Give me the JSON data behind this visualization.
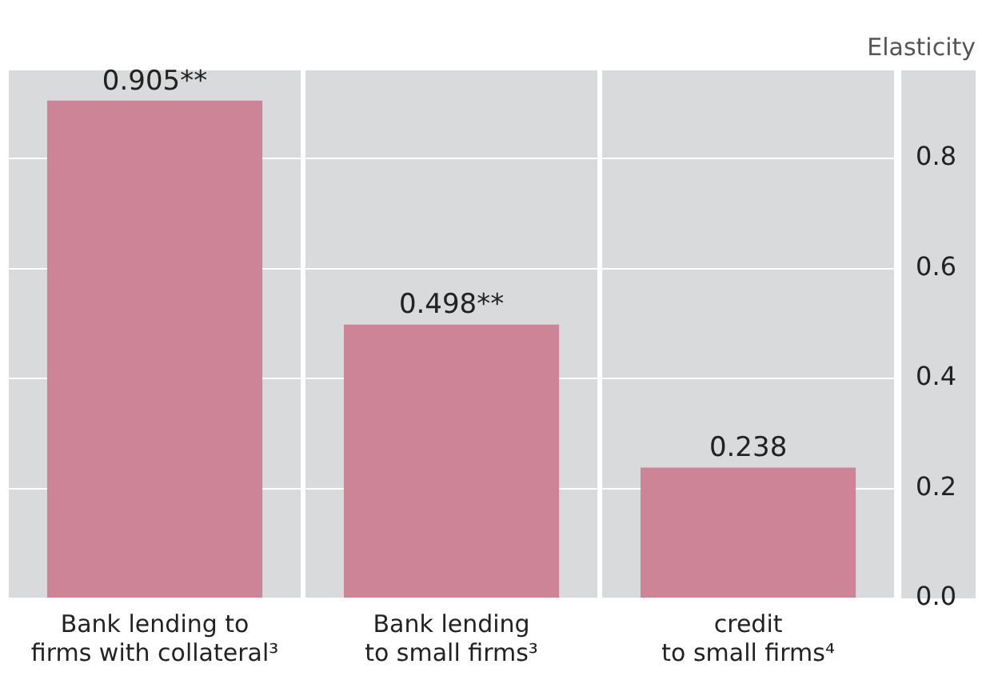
{
  "chart_data": {
    "type": "bar",
    "ylabel": "Elasticity",
    "categories": [
      "Bank lending to\nfirms with collateral³",
      "Bank lending\nto small firms³",
      "credit\nto small firms⁴"
    ],
    "values": [
      0.905,
      0.498,
      0.238
    ],
    "value_labels": [
      "0.905**",
      "0.498**",
      "0.238"
    ],
    "color": "#cc8496",
    "ylim": [
      0,
      0.96
    ],
    "yticks": [
      {
        "value": 0,
        "label": "0.0"
      },
      {
        "value": 0.2,
        "label": "0.2"
      },
      {
        "value": 0.4,
        "label": "0.4"
      },
      {
        "value": 0.6,
        "label": "0.6"
      },
      {
        "value": 0.8,
        "label": "0.8"
      }
    ],
    "grid": true,
    "legend": false
  }
}
